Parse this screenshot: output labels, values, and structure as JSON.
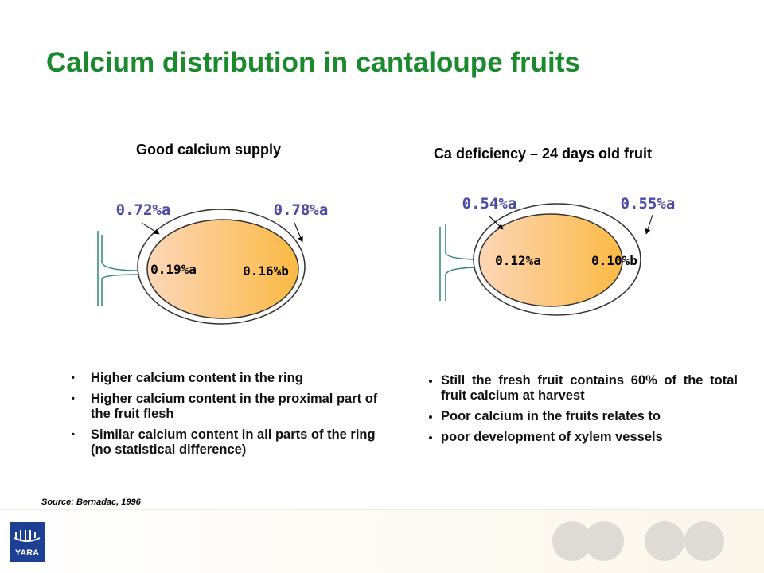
{
  "title": "Calcium distribution in cantaloupe fruits",
  "left": {
    "heading": "Good calcium supply",
    "ring_labels": [
      "0.72%a",
      "0.78%a"
    ],
    "flesh_labels": [
      "0.19%a",
      "0.16%b"
    ],
    "bullets": [
      "Higher calcium content in the ring",
      "Higher calcium content in the proximal part of the fruit flesh",
      "Similar calcium content in all parts of the ring (no statistical difference)"
    ]
  },
  "right": {
    "heading": "Ca deficiency – 24 days old fruit",
    "ring_labels": [
      "0.54%a",
      "0.55%a"
    ],
    "flesh_labels": [
      "0.12%a",
      "0.10%b"
    ],
    "bullets": [
      "Still the fresh fruit contains 60% of the total fruit calcium at harvest",
      "Poor calcium in the fruits relates to",
      "poor development of xylem vessels"
    ]
  },
  "source": "Source: Bernadac, 1996",
  "logo": "YARA"
}
